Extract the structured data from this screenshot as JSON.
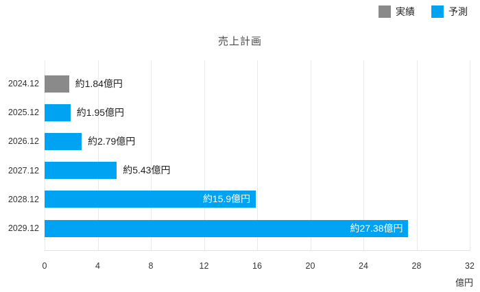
{
  "chart_data": {
    "type": "bar",
    "orientation": "horizontal",
    "title": "売上計画",
    "unit_label": "億円",
    "legend_position": "top-right",
    "grid": true,
    "legend": [
      {
        "name": "実績",
        "color": "#8a8a8a"
      },
      {
        "name": "予測",
        "color": "#00a2f2"
      }
    ],
    "categories": [
      "2024.12",
      "2025.12",
      "2026.12",
      "2027.12",
      "2028.12",
      "2029.12"
    ],
    "values": [
      1.84,
      1.95,
      2.79,
      5.43,
      15.9,
      27.38
    ],
    "value_labels": [
      "約1.84億円",
      "約1.95億円",
      "約2.79億円",
      "約5.43億円",
      "約15.9億円",
      "約27.38億円"
    ],
    "bar_series": [
      "実績",
      "予測",
      "予測",
      "予測",
      "予測",
      "予測"
    ],
    "label_inside": [
      false,
      false,
      false,
      false,
      true,
      true
    ],
    "x_ticks": [
      0,
      4,
      8,
      12,
      16,
      20,
      24,
      28,
      32
    ],
    "xlim": [
      0,
      32
    ],
    "xlabel": "億円",
    "ylabel": ""
  },
  "colors": {
    "actual": "#8a8a8a",
    "forecast": "#00a2f2",
    "gridline": "#e9e9e9",
    "axis_text": "#333333",
    "title_text": "#4a4a4a",
    "inside_label": "#ffffff",
    "outside_label": "#1f1f1f",
    "background": "#ffffff"
  }
}
